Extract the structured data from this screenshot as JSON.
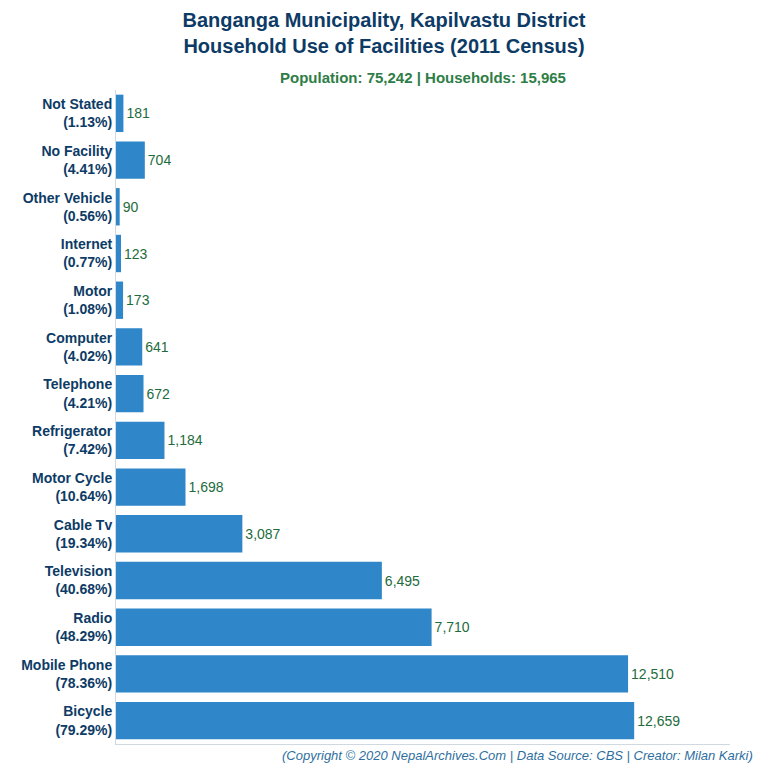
{
  "chart_data": {
    "type": "bar",
    "title": "Banganga Municipality, Kapilvastu District\nHousehold Use of Facilities (2011 Census)",
    "subtitle": "Population: 75,242 | Households: 15,965",
    "caption": "(Copyright © 2020 NepalArchives.Com | Data Source: CBS | Creator: Milan Karki)",
    "orientation": "horizontal",
    "categories": [
      "Not Stated\n(1.13%)",
      "No Facility\n(4.41%)",
      "Other Vehicle\n(0.56%)",
      "Internet\n(0.77%)",
      "Motor\n(1.08%)",
      "Computer\n(4.02%)",
      "Telephone\n(4.21%)",
      "Refrigerator\n(7.42%)",
      "Motor Cycle\n(10.64%)",
      "Cable Tv\n(19.34%)",
      "Television\n(40.68%)",
      "Radio\n(48.29%)",
      "Mobile Phone\n(78.36%)",
      "Bicycle\n(79.29%)"
    ],
    "values": [
      181,
      704,
      90,
      123,
      173,
      641,
      672,
      1184,
      1698,
      3087,
      6495,
      7710,
      12510,
      12659
    ],
    "value_labels": [
      "181",
      "704",
      "90",
      "123",
      "173",
      "641",
      "672",
      "1,184",
      "1,698",
      "3,087",
      "6,495",
      "7,710",
      "12,510",
      "12,659"
    ],
    "color": "#2f86c8",
    "xlim": [
      0,
      15000
    ],
    "data_labels": true,
    "tick_labels": "y",
    "grid": false
  }
}
